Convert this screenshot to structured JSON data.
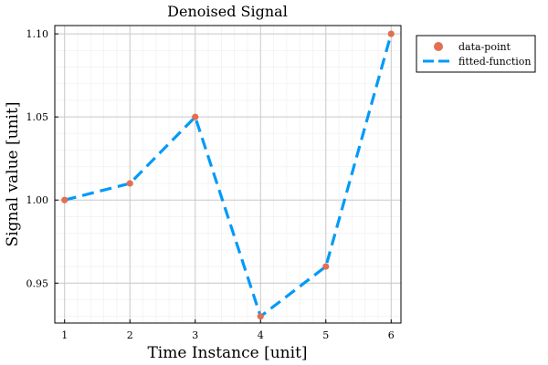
{
  "chart_data": {
    "type": "line",
    "title": "Denoised Signal",
    "xlabel": "Time Instance [unit]",
    "ylabel": "Signal value [unit]",
    "xlim": [
      0.85,
      6.15
    ],
    "ylim": [
      0.926,
      1.105
    ],
    "x_ticks": [
      1,
      2,
      3,
      4,
      5,
      6
    ],
    "x_tick_labels": [
      "1",
      "2",
      "3",
      "4",
      "5",
      "6"
    ],
    "y_ticks": [
      0.95,
      1.0,
      1.05,
      1.1
    ],
    "y_tick_labels": [
      "0.95",
      "1.00",
      "1.05",
      "1.10"
    ],
    "grid": true,
    "minor_grid": true,
    "legend_position": "outside-top-right",
    "series": [
      {
        "name": "data-point",
        "kind": "scatter",
        "color": "#e26f53",
        "x": [
          1,
          2,
          3,
          4,
          5,
          6
        ],
        "y": [
          1.0,
          1.01,
          1.05,
          0.93,
          0.96,
          1.1
        ]
      },
      {
        "name": "fitted-function",
        "kind": "line",
        "style": "dashed",
        "color": "#009af9",
        "x": [
          1,
          2,
          3,
          4,
          5,
          6
        ],
        "y": [
          1.0,
          1.01,
          1.05,
          0.93,
          0.96,
          1.1
        ]
      }
    ]
  }
}
